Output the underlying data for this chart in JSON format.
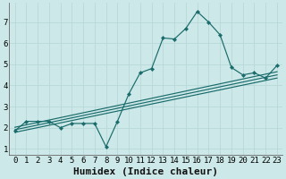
{
  "xlabel": "Humidex (Indice chaleur)",
  "ylabel": "",
  "bg_color": "#cce8e8",
  "grid_color": "#b8d8d8",
  "line_color": "#1a6b6b",
  "x_data": [
    0,
    1,
    2,
    3,
    4,
    5,
    6,
    7,
    8,
    9,
    10,
    11,
    12,
    13,
    14,
    15,
    16,
    17,
    18,
    19,
    20,
    21,
    22,
    23
  ],
  "y_main": [
    1.85,
    2.3,
    2.3,
    2.3,
    2.0,
    2.2,
    2.2,
    2.2,
    1.1,
    2.3,
    3.6,
    4.6,
    4.8,
    6.25,
    6.2,
    6.7,
    7.5,
    7.0,
    6.4,
    4.85,
    4.5,
    4.6,
    4.35,
    4.95
  ],
  "trend_lines": [
    {
      "x": [
        0,
        23
      ],
      "y": [
        1.78,
        4.35
      ]
    },
    {
      "x": [
        0,
        23
      ],
      "y": [
        1.9,
        4.5
      ]
    },
    {
      "x": [
        0,
        23
      ],
      "y": [
        2.02,
        4.65
      ]
    }
  ],
  "xlim": [
    -0.5,
    23.5
  ],
  "ylim": [
    0.7,
    7.9
  ],
  "xticks": [
    0,
    1,
    2,
    3,
    4,
    5,
    6,
    7,
    8,
    9,
    10,
    11,
    12,
    13,
    14,
    15,
    16,
    17,
    18,
    19,
    20,
    21,
    22,
    23
  ],
  "yticks": [
    1,
    2,
    3,
    4,
    5,
    6,
    7
  ],
  "tick_fontsize": 6.5,
  "label_fontsize": 8.0
}
